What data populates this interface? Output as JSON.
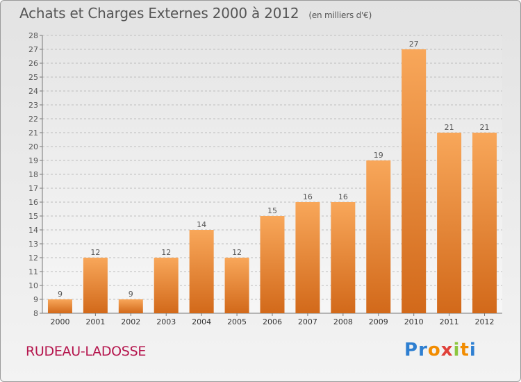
{
  "header": {
    "title": "Achats et Charges Externes 2000 à 2012",
    "unit": "(en milliers d'€)"
  },
  "footer": {
    "city": "RUDEAU-LADOSSE",
    "brand": "Proxiti",
    "brand_letters": [
      {
        "char": "P",
        "color": "#2e7fd1"
      },
      {
        "char": "r",
        "color": "#2e7fd1"
      },
      {
        "char": "o",
        "color": "#f28c00"
      },
      {
        "char": "x",
        "color": "#e0413a"
      },
      {
        "char": "i",
        "color": "#8cc63e"
      },
      {
        "char": "t",
        "color": "#f28c00"
      },
      {
        "char": "i",
        "color": "#2e7fd1"
      }
    ]
  },
  "colors": {
    "bar_top": "#f8a75a",
    "bar_bottom": "#d2691a",
    "grid": "#bdbdbd",
    "text": "#555555",
    "city": "#b5154d"
  },
  "chart_data": {
    "type": "bar",
    "title": "Achats et Charges Externes 2000 à 2012",
    "subtitle": "(en milliers d'€)",
    "categories": [
      "2000",
      "2001",
      "2002",
      "2003",
      "2004",
      "2005",
      "2006",
      "2007",
      "2008",
      "2009",
      "2010",
      "2011",
      "2012"
    ],
    "values": [
      9,
      12,
      9,
      12,
      14,
      12,
      15,
      16,
      16,
      19,
      27,
      21,
      21
    ],
    "ylim": [
      8,
      28
    ],
    "yticks": [
      8,
      9,
      10,
      11,
      12,
      13,
      14,
      15,
      16,
      17,
      18,
      19,
      20,
      21,
      22,
      23,
      24,
      25,
      26,
      27,
      28
    ],
    "grid": true,
    "data_labels": true
  }
}
